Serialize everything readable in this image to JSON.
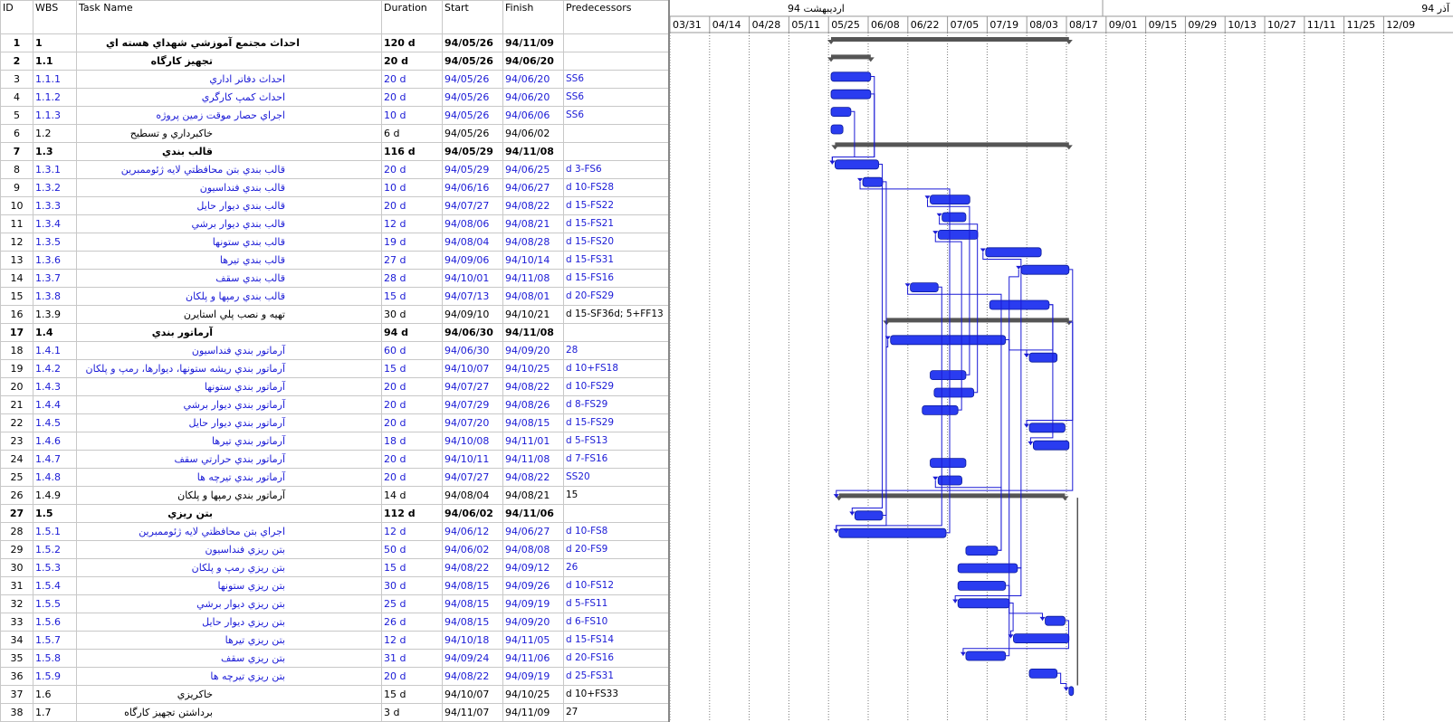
{
  "columns": [
    "ID",
    "WBS",
    "Task Name",
    "Duration",
    "Start",
    "Finish",
    "Predecessors"
  ],
  "timescale": {
    "top_left": "اردیبهشت  94",
    "top_right": "آذر  94",
    "weeks": [
      "03/31",
      "04/14",
      "04/28",
      "05/11",
      "05/25",
      "06/08",
      "06/22",
      "07/05",
      "07/19",
      "08/03",
      "08/17",
      "09/01",
      "09/15",
      "09/29",
      "10/13",
      "10/27",
      "11/11",
      "11/25",
      "12/09"
    ]
  },
  "tasks": [
    {
      "id": "1",
      "wbs": "1",
      "name": "احداث مجتمع آموزشي شهداي هسته اي",
      "duration": "120 d",
      "start": "94/05/26",
      "finish": "94/11/09",
      "pred": "",
      "level": 0,
      "summary": true,
      "bar": [
        5.0,
        11.0
      ]
    },
    {
      "id": "2",
      "wbs": "1.1",
      "name": "تجهيز كارگاه",
      "duration": "20 d",
      "start": "94/05/26",
      "finish": "94/06/20",
      "pred": "",
      "level": 1,
      "summary": true,
      "bar": [
        5.0,
        6.0
      ]
    },
    {
      "id": "3",
      "wbs": "1.1.1",
      "name": "احداث دفاتر اداري",
      "duration": "20 d",
      "start": "94/05/26",
      "finish": "94/06/20",
      "pred": "SS6",
      "level": 2,
      "sub": true,
      "bar": [
        5.0,
        6.0
      ]
    },
    {
      "id": "4",
      "wbs": "1.1.2",
      "name": "احداث كمپ كارگري",
      "duration": "20 d",
      "start": "94/05/26",
      "finish": "94/06/20",
      "pred": "SS6",
      "level": 2,
      "sub": true,
      "bar": [
        5.0,
        6.0
      ]
    },
    {
      "id": "5",
      "wbs": "1.1.3",
      "name": "اجراي حصار موقت زمين  پروژه",
      "duration": "10 d",
      "start": "94/05/26",
      "finish": "94/06/06",
      "pred": "SS6",
      "level": 2,
      "sub": true,
      "bar": [
        5.0,
        5.5
      ]
    },
    {
      "id": "6",
      "wbs": "1.2",
      "name": "خاكبرداري و تسطيح",
      "duration": "6 d",
      "start": "94/05/26",
      "finish": "94/06/02",
      "pred": "",
      "level": 1,
      "bar": [
        5.0,
        5.3
      ]
    },
    {
      "id": "7",
      "wbs": "1.3",
      "name": "قالب بندي",
      "duration": "116 d",
      "start": "94/05/29",
      "finish": "94/11/08",
      "pred": "",
      "level": 1,
      "summary": true,
      "bar": [
        5.1,
        11.0
      ]
    },
    {
      "id": "8",
      "wbs": "1.3.1",
      "name": "قالب بندي بتن محافظتي لايه ژئوممبرين",
      "duration": "20 d",
      "start": "94/05/29",
      "finish": "94/06/25",
      "pred": "d 3-FS6",
      "level": 2,
      "sub": true,
      "bar": [
        5.1,
        6.2
      ]
    },
    {
      "id": "9",
      "wbs": "1.3.2",
      "name": "قالب بندي فنداسيون",
      "duration": "10 d",
      "start": "94/06/16",
      "finish": "94/06/27",
      "pred": "d 10-FS28",
      "level": 2,
      "sub": true,
      "bar": [
        5.8,
        6.3
      ]
    },
    {
      "id": "10",
      "wbs": "1.3.3",
      "name": "قالب بندي ديوار حايل",
      "duration": "20 d",
      "start": "94/07/27",
      "finish": "94/08/22",
      "pred": "d 15-FS22",
      "level": 2,
      "sub": true,
      "bar": [
        7.5,
        8.5
      ]
    },
    {
      "id": "11",
      "wbs": "1.3.4",
      "name": "قالب بندي ديوار برشي",
      "duration": "12 d",
      "start": "94/08/06",
      "finish": "94/08/21",
      "pred": "d 15-FS21",
      "level": 2,
      "sub": true,
      "bar": [
        7.8,
        8.4
      ]
    },
    {
      "id": "12",
      "wbs": "1.3.5",
      "name": "قالب بندي ستونها",
      "duration": "19 d",
      "start": "94/08/04",
      "finish": "94/08/28",
      "pred": "d 15-FS20",
      "level": 2,
      "sub": true,
      "bar": [
        7.7,
        8.7
      ]
    },
    {
      "id": "13",
      "wbs": "1.3.6",
      "name": "قالب بندي تيرها",
      "duration": "27 d",
      "start": "94/09/06",
      "finish": "94/10/14",
      "pred": "d 15-FS31",
      "level": 2,
      "sub": true,
      "bar": [
        8.9,
        10.3
      ]
    },
    {
      "id": "14",
      "wbs": "1.3.7",
      "name": "قالب بندي سقف",
      "duration": "28 d",
      "start": "94/10/01",
      "finish": "94/11/08",
      "pred": "d 15-FS16",
      "level": 2,
      "sub": true,
      "bar": [
        9.8,
        11.0
      ]
    },
    {
      "id": "15",
      "wbs": "1.3.8",
      "name": "قالب بندي رمپها و پلكان",
      "duration": "15 d",
      "start": "94/07/13",
      "finish": "94/08/01",
      "pred": "d 20-FS29",
      "level": 2,
      "sub": true,
      "bar": [
        7.0,
        7.7
      ]
    },
    {
      "id": "16",
      "wbs": "1.3.9",
      "name": "تهيه و نصب پلي استايرن",
      "duration": "30 d",
      "start": "94/09/10",
      "finish": "94/10/21",
      "pred": "d 15-SF36d; 5+FF13",
      "level": 2,
      "bar": [
        9.0,
        10.5
      ]
    },
    {
      "id": "17",
      "wbs": "1.4",
      "name": "آرماتور بندي",
      "duration": "94 d",
      "start": "94/06/30",
      "finish": "94/11/08",
      "pred": "",
      "level": 1,
      "summary": true,
      "bar": [
        6.4,
        11.0
      ]
    },
    {
      "id": "18",
      "wbs": "1.4.1",
      "name": "آرماتور بندي فنداسيون",
      "duration": "60 d",
      "start": "94/06/30",
      "finish": "94/09/20",
      "pred": "28",
      "level": 2,
      "sub": true,
      "bar": [
        6.5,
        9.4
      ]
    },
    {
      "id": "19",
      "wbs": "1.4.2",
      "name": "آرماتور بندي ريشه ستونها، ديوارها، رمپ و پلكان",
      "duration": "15 d",
      "start": "94/10/07",
      "finish": "94/10/25",
      "pred": "d 10+FS18",
      "level": 2,
      "sub": true,
      "bar": [
        10.0,
        10.7
      ]
    },
    {
      "id": "20",
      "wbs": "1.4.3",
      "name": "آرماتور بندي ستونها",
      "duration": "20 d",
      "start": "94/07/27",
      "finish": "94/08/22",
      "pred": "d 10-FS29",
      "level": 2,
      "sub": true,
      "bar": [
        7.5,
        8.4
      ]
    },
    {
      "id": "21",
      "wbs": "1.4.4",
      "name": "آرماتور بندي ديوار برشي",
      "duration": "20 d",
      "start": "94/07/29",
      "finish": "94/08/26",
      "pred": "d 8-FS29",
      "level": 2,
      "sub": true,
      "bar": [
        7.6,
        8.6
      ]
    },
    {
      "id": "22",
      "wbs": "1.4.5",
      "name": "آرماتور بندي ديوار حايل",
      "duration": "20 d",
      "start": "94/07/20",
      "finish": "94/08/15",
      "pred": "d 15-FS29",
      "level": 2,
      "sub": true,
      "bar": [
        7.3,
        8.2
      ]
    },
    {
      "id": "23",
      "wbs": "1.4.6",
      "name": "آرماتور بندي تيرها",
      "duration": "18 d",
      "start": "94/10/08",
      "finish": "94/11/01",
      "pred": "d 5-FS13",
      "level": 2,
      "sub": true,
      "bar": [
        10.0,
        10.9
      ]
    },
    {
      "id": "24",
      "wbs": "1.4.7",
      "name": "آرماتور بندي حرارتي سقف",
      "duration": "20 d",
      "start": "94/10/11",
      "finish": "94/11/08",
      "pred": "d 7-FS16",
      "level": 2,
      "sub": true,
      "bar": [
        10.1,
        11.0
      ]
    },
    {
      "id": "25",
      "wbs": "1.4.8",
      "name": "آرماتور بندي تيرچه ها",
      "duration": "20 d",
      "start": "94/07/27",
      "finish": "94/08/22",
      "pred": "SS20",
      "level": 2,
      "sub": true,
      "bar": [
        7.5,
        8.4
      ]
    },
    {
      "id": "26",
      "wbs": "1.4.9",
      "name": "آرماتور بندي رمپها و پلكان",
      "duration": "14 d",
      "start": "94/08/04",
      "finish": "94/08/21",
      "pred": "15",
      "level": 2,
      "bar": [
        7.7,
        8.3
      ]
    },
    {
      "id": "27",
      "wbs": "1.5",
      "name": "بتن ريزي",
      "duration": "112 d",
      "start": "94/06/02",
      "finish": "94/11/06",
      "pred": "",
      "level": 1,
      "summary": true,
      "bar": [
        5.2,
        10.9
      ]
    },
    {
      "id": "28",
      "wbs": "1.5.1",
      "name": "اجراي بتن محافظتي لايه ژئوممبرين",
      "duration": "12 d",
      "start": "94/06/12",
      "finish": "94/06/27",
      "pred": "d 10-FS8",
      "level": 2,
      "sub": true,
      "bar": [
        5.6,
        6.3
      ]
    },
    {
      "id": "29",
      "wbs": "1.5.2",
      "name": "بتن ريزي فنداسيون",
      "duration": "50 d",
      "start": "94/06/02",
      "finish": "94/08/08",
      "pred": "d 20-FS9",
      "level": 2,
      "sub": true,
      "bar": [
        5.2,
        7.9
      ]
    },
    {
      "id": "30",
      "wbs": "1.5.3",
      "name": "بتن ريزي رمپ و پلكان",
      "duration": "15 d",
      "start": "94/08/22",
      "finish": "94/09/12",
      "pred": "26",
      "level": 2,
      "sub": true,
      "bar": [
        8.4,
        9.2
      ]
    },
    {
      "id": "31",
      "wbs": "1.5.4",
      "name": "بتن ريزي ستونها",
      "duration": "30 d",
      "start": "94/08/15",
      "finish": "94/09/26",
      "pred": "d 10-FS12",
      "level": 2,
      "sub": true,
      "bar": [
        8.2,
        9.7
      ]
    },
    {
      "id": "32",
      "wbs": "1.5.5",
      "name": "بتن ريزي ديوار برشي",
      "duration": "25 d",
      "start": "94/08/15",
      "finish": "94/09/19",
      "pred": "d 5-FS11",
      "level": 2,
      "sub": true,
      "bar": [
        8.2,
        9.4
      ]
    },
    {
      "id": "33",
      "wbs": "1.5.6",
      "name": "بتن ريزي ديوار حايل",
      "duration": "26 d",
      "start": "94/08/15",
      "finish": "94/09/20",
      "pred": "d 6-FS10",
      "level": 2,
      "sub": true,
      "bar": [
        8.2,
        9.5
      ]
    },
    {
      "id": "34",
      "wbs": "1.5.7",
      "name": "بتن ريزي تيرها",
      "duration": "12 d",
      "start": "94/10/18",
      "finish": "94/11/05",
      "pred": "d 15-FS14",
      "level": 2,
      "sub": true,
      "bar": [
        10.4,
        10.9
      ]
    },
    {
      "id": "35",
      "wbs": "1.5.8",
      "name": "بتن ريزي سقف",
      "duration": "31 d",
      "start": "94/09/24",
      "finish": "94/11/06",
      "pred": "d 20-FS16",
      "level": 2,
      "sub": true,
      "bar": [
        9.6,
        11.0
      ]
    },
    {
      "id": "36",
      "wbs": "1.5.9",
      "name": "بتن ريزي تيرچه ها",
      "duration": "20 d",
      "start": "94/08/22",
      "finish": "94/09/19",
      "pred": "d 25-FS31",
      "level": 2,
      "sub": true,
      "bar": [
        8.4,
        9.4
      ]
    },
    {
      "id": "37",
      "wbs": "1.6",
      "name": "خاكريزي",
      "duration": "15 d",
      "start": "94/10/07",
      "finish": "94/10/25",
      "pred": "d 10+FS33",
      "level": 1,
      "bar": [
        10.0,
        10.7
      ]
    },
    {
      "id": "38",
      "wbs": "1.7",
      "name": "برداشتن تجهيز كارگاه",
      "duration": "3 d",
      "start": "94/11/07",
      "finish": "94/11/09",
      "pred": "27",
      "level": 1,
      "bar": [
        11.0,
        11.1
      ]
    }
  ],
  "colors": {
    "bar": "#2a3cf0",
    "summary": "#555555",
    "link": "#1a1ad6"
  }
}
